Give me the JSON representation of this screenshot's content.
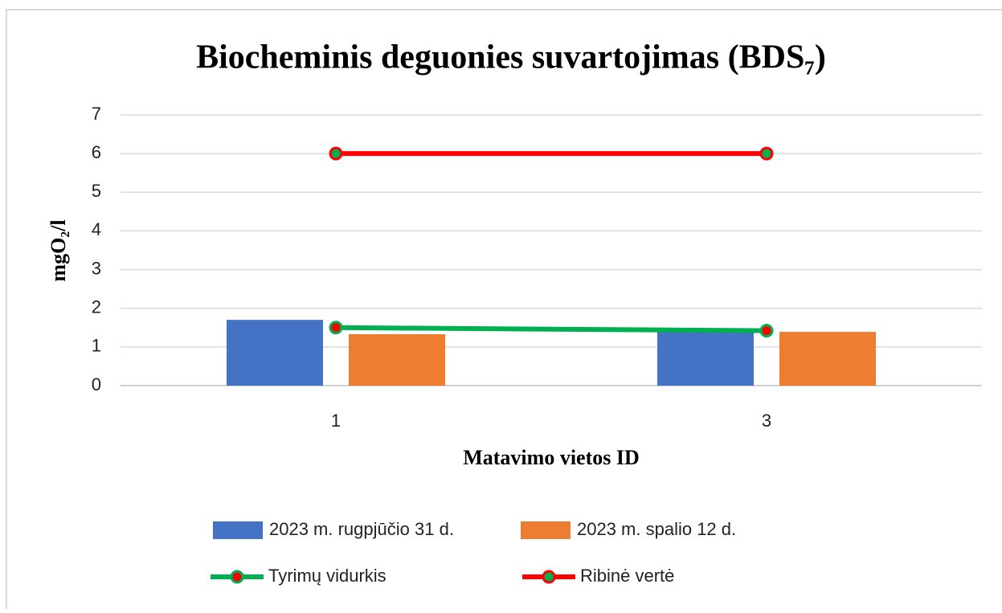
{
  "chart_data": {
    "type": "bar",
    "title": "Biocheminis deguonies suvartojimas (BDS₇)",
    "xlabel": "Matavimo vietos ID",
    "ylabel": "mgO₂/l",
    "categories": [
      "1",
      "3"
    ],
    "series": [
      {
        "name": "2023 m. rugpjūčio 31 d.",
        "type": "bar",
        "color": "#4472c4",
        "values": [
          1.7,
          1.45
        ]
      },
      {
        "name": "2023 m. spalio 12 d.",
        "type": "bar",
        "color": "#ed7d31",
        "values": [
          1.33,
          1.39
        ]
      },
      {
        "name": "Tyrimų vidurkis",
        "type": "line",
        "color": "#00b050",
        "marker_color": "#ff0000",
        "values": [
          1.5,
          1.42
        ]
      },
      {
        "name": "Ribinė vertė",
        "type": "line",
        "color": "#ff0000",
        "marker_color": "#00b050",
        "values": [
          6,
          6
        ]
      }
    ],
    "ylim": [
      0,
      7
    ],
    "yticks": [
      0,
      1,
      2,
      3,
      4,
      5,
      6,
      7
    ],
    "grid": true
  }
}
